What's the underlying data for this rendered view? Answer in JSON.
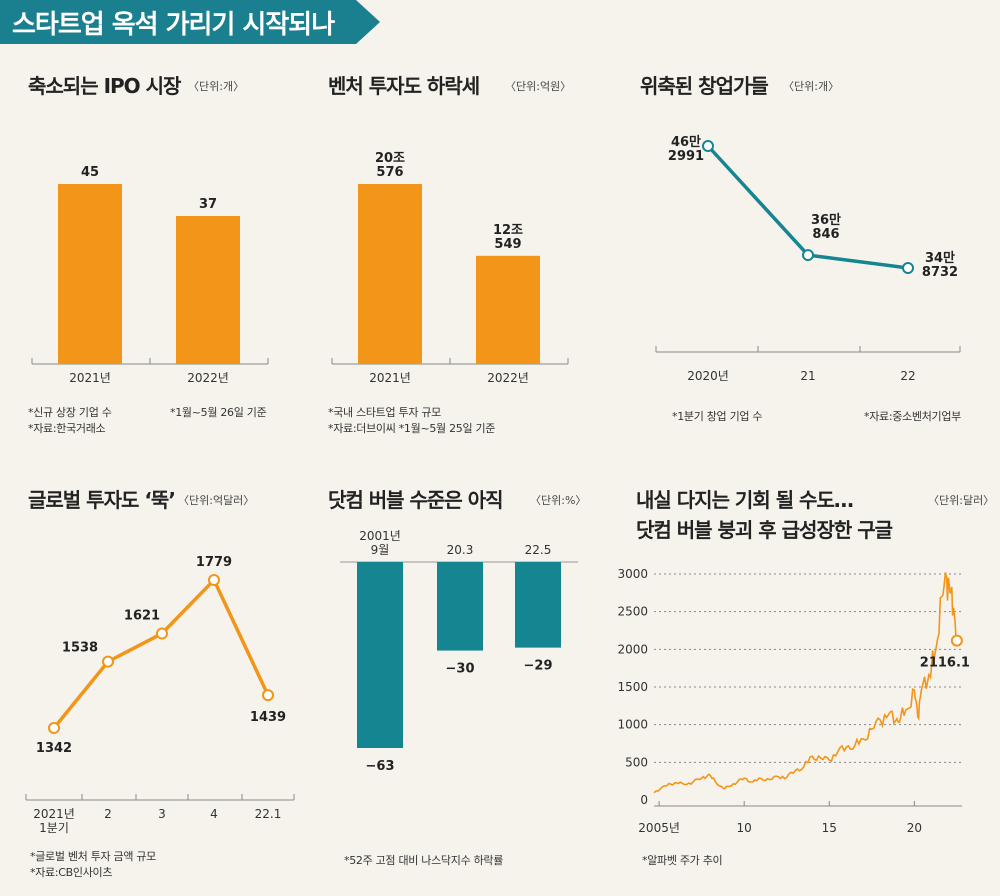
{
  "banner": {
    "title": "스타트업 옥석 가리기 시작되나",
    "color": "#1a7f8e"
  },
  "colors": {
    "orange": "#f39519",
    "teal": "#148591",
    "bg": "#f5f3ec"
  },
  "chart_data": [
    {
      "type": "bar",
      "title": "축소되는 IPO 시장",
      "unit": "〈단위:개〉",
      "categories": [
        "2021년",
        "2022년"
      ],
      "values": [
        45,
        37
      ],
      "labels": [
        "45",
        "37"
      ],
      "ylim": [
        0,
        45
      ],
      "notes": [
        "*신규 상장 기업 수",
        "*1월~5월 26일 기준",
        "*자료:한국거래소"
      ]
    },
    {
      "type": "bar",
      "title": "벤처 투자도 하락세",
      "unit": "〈단위:억원〉",
      "categories": [
        "2021년",
        "2022년"
      ],
      "values": [
        200576,
        120549
      ],
      "labels": [
        [
          "20조",
          "576"
        ],
        [
          "12조",
          "549"
        ]
      ],
      "ylim": [
        0,
        200576
      ],
      "notes": [
        "*국내 스타트업 투자 규모",
        "*자료:더브이씨 *1월~5월 25일 기준"
      ]
    },
    {
      "type": "line",
      "title": "위축된 창업가들",
      "unit": "〈단위:개〉",
      "categories": [
        "2020년",
        "21",
        "22"
      ],
      "values": [
        462991,
        360846,
        348732
      ],
      "labels": [
        [
          "46만",
          "2991"
        ],
        [
          "36만",
          "846"
        ],
        [
          "34만",
          "8732"
        ]
      ],
      "notes": [
        "*1분기 창업 기업 수",
        "*자료:중소벤처기업부"
      ]
    },
    {
      "type": "line",
      "title": "글로벌 투자도 ‘뚝’",
      "unit": "〈단위:억달러〉",
      "categories": [
        "2021년",
        "2",
        "3",
        "4",
        "22.1"
      ],
      "sublabel": "1분기",
      "values": [
        1342,
        1538,
        1621,
        1779,
        1439
      ],
      "labels": [
        "1342",
        "1538",
        "1621",
        "1779",
        "1439"
      ],
      "notes": [
        "*글로벌 벤처 투자 금액 규모",
        "*자료:CB인사이츠"
      ]
    },
    {
      "type": "bar",
      "title": "닷컴 버블 수준은 아직",
      "unit": "〈단위:%〉",
      "categories": [
        [
          "2001년",
          "9월"
        ],
        [
          "20.3"
        ],
        [
          "22.5"
        ]
      ],
      "values": [
        -63,
        -30,
        -29
      ],
      "labels": [
        "−63",
        "−30",
        "−29"
      ],
      "ylim": [
        -63,
        0
      ],
      "notes": [
        "*52주 고점 대비 나스닥지수 하락률"
      ]
    },
    {
      "type": "line",
      "title": [
        "내실 다지는 기회 될 수도…",
        "닷컴 버블 붕괴 후 급성장한 구글"
      ],
      "unit": "〈단위:달러〉",
      "xticks": [
        "2005년",
        "10",
        "15",
        "20"
      ],
      "xtick_years": [
        2005,
        2010,
        2015,
        2020
      ],
      "yticks": [
        "3000",
        "2500",
        "2000",
        "1500",
        "1000",
        "500",
        "0"
      ],
      "ylim": [
        0,
        3000
      ],
      "xlim": [
        2004.7,
        2022.8
      ],
      "x": [
        2004.7,
        2005.2,
        2005.7,
        2006.0,
        2006.5,
        2007.0,
        2007.5,
        2007.9,
        2008.3,
        2008.8,
        2009.1,
        2009.6,
        2010.0,
        2010.5,
        2011.0,
        2011.5,
        2012.0,
        2012.5,
        2013.0,
        2013.5,
        2014.0,
        2014.5,
        2015.0,
        2015.5,
        2016.0,
        2016.5,
        2017.0,
        2017.5,
        2018.0,
        2018.5,
        2018.9,
        2019.2,
        2019.6,
        2020.0,
        2020.2,
        2020.4,
        2020.8,
        2021.0,
        2021.3,
        2021.6,
        2021.9,
        2022.1,
        2022.3,
        2022.5
      ],
      "values": [
        95,
        175,
        210,
        230,
        205,
        240,
        290,
        340,
        245,
        150,
        180,
        240,
        290,
        240,
        285,
        270,
        310,
        300,
        390,
        440,
        580,
        555,
        530,
        640,
        700,
        720,
        810,
        940,
        1060,
        1140,
        1050,
        1100,
        1210,
        1460,
        1100,
        1450,
        1600,
        1750,
        2050,
        2700,
        2950,
        2750,
        2550,
        2116.1
      ],
      "end_label": "2116.1",
      "notes": [
        "*알파벳 주가 추이"
      ]
    }
  ]
}
